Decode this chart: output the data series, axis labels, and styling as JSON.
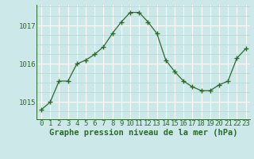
{
  "x": [
    0,
    1,
    2,
    3,
    4,
    5,
    6,
    7,
    8,
    9,
    10,
    11,
    12,
    13,
    14,
    15,
    16,
    17,
    18,
    19,
    20,
    21,
    22,
    23
  ],
  "y": [
    1014.8,
    1015.0,
    1015.55,
    1015.55,
    1016.0,
    1016.1,
    1016.25,
    1016.45,
    1016.8,
    1017.1,
    1017.35,
    1017.35,
    1017.1,
    1016.8,
    1016.1,
    1015.8,
    1015.55,
    1015.4,
    1015.3,
    1015.3,
    1015.45,
    1015.55,
    1016.15,
    1016.4
  ],
  "line_color": "#2d6a2d",
  "marker": "+",
  "marker_size": 4,
  "bg_color": "#cce8e8",
  "grid_major_color": "#ffffff",
  "grid_minor_color": "#b8d8d8",
  "ylabel_ticks": [
    1015,
    1016,
    1017
  ],
  "ylim": [
    1014.55,
    1017.55
  ],
  "xlim": [
    -0.5,
    23.5
  ],
  "xlabel_label": "Graphe pression niveau de la mer (hPa)",
  "xlabel_fontsize": 7.5,
  "tick_fontsize": 6.5,
  "title": ""
}
